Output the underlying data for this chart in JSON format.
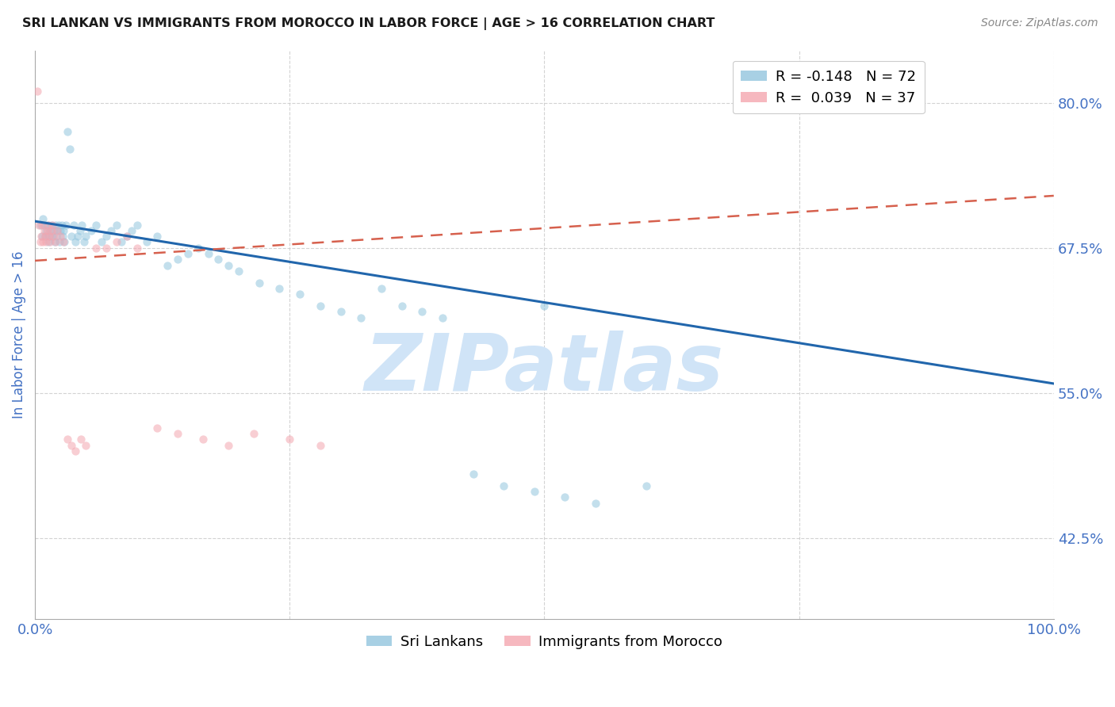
{
  "title": "SRI LANKAN VS IMMIGRANTS FROM MOROCCO IN LABOR FORCE | AGE > 16 CORRELATION CHART",
  "source": "Source: ZipAtlas.com",
  "ylabel": "In Labor Force | Age > 16",
  "yticks": [
    0.425,
    0.55,
    0.675,
    0.8
  ],
  "ytick_labels": [
    "42.5%",
    "55.0%",
    "67.5%",
    "80.0%"
  ],
  "xlim": [
    0.0,
    1.0
  ],
  "ylim": [
    0.355,
    0.845
  ],
  "sri_lankan_color": "#92c5de",
  "morocco_color": "#f4a6b0",
  "blue_line_color": "#2166ac",
  "pink_line_color": "#d6604d",
  "grid_color": "#c8c8c8",
  "title_color": "#1a1a1a",
  "axis_label_color": "#4472c4",
  "tick_label_color": "#4472c4",
  "watermark": "ZIPatlas",
  "watermark_color": "#d0e4f7",
  "scatter_alpha": 0.55,
  "scatter_size": 55,
  "blue_line_x": [
    0.0,
    1.0
  ],
  "blue_line_y": [
    0.698,
    0.558
  ],
  "pink_line_x": [
    0.0,
    1.0
  ],
  "pink_line_y": [
    0.664,
    0.72
  ],
  "sri_lankan_x": [
    0.005,
    0.007,
    0.008,
    0.009,
    0.01,
    0.011,
    0.012,
    0.013,
    0.014,
    0.015,
    0.016,
    0.017,
    0.018,
    0.019,
    0.02,
    0.021,
    0.022,
    0.023,
    0.024,
    0.025,
    0.026,
    0.027,
    0.028,
    0.029,
    0.03,
    0.032,
    0.034,
    0.036,
    0.038,
    0.04,
    0.042,
    0.044,
    0.046,
    0.048,
    0.05,
    0.055,
    0.06,
    0.065,
    0.07,
    0.075,
    0.08,
    0.085,
    0.09,
    0.095,
    0.1,
    0.11,
    0.12,
    0.13,
    0.14,
    0.15,
    0.16,
    0.17,
    0.18,
    0.19,
    0.2,
    0.22,
    0.24,
    0.26,
    0.28,
    0.3,
    0.32,
    0.34,
    0.36,
    0.38,
    0.4,
    0.43,
    0.46,
    0.49,
    0.52,
    0.55,
    0.6,
    0.5
  ],
  "sri_lankan_y": [
    0.695,
    0.685,
    0.7,
    0.695,
    0.685,
    0.69,
    0.695,
    0.68,
    0.685,
    0.69,
    0.695,
    0.685,
    0.69,
    0.68,
    0.695,
    0.685,
    0.69,
    0.695,
    0.68,
    0.69,
    0.695,
    0.685,
    0.69,
    0.68,
    0.695,
    0.775,
    0.76,
    0.685,
    0.695,
    0.68,
    0.685,
    0.69,
    0.695,
    0.68,
    0.685,
    0.69,
    0.695,
    0.68,
    0.685,
    0.69,
    0.695,
    0.68,
    0.685,
    0.69,
    0.695,
    0.68,
    0.685,
    0.66,
    0.665,
    0.67,
    0.675,
    0.67,
    0.665,
    0.66,
    0.655,
    0.645,
    0.64,
    0.635,
    0.625,
    0.62,
    0.615,
    0.64,
    0.625,
    0.62,
    0.615,
    0.48,
    0.47,
    0.465,
    0.46,
    0.455,
    0.47,
    0.625
  ],
  "morocco_x": [
    0.002,
    0.004,
    0.005,
    0.006,
    0.007,
    0.008,
    0.009,
    0.01,
    0.011,
    0.012,
    0.013,
    0.014,
    0.015,
    0.016,
    0.017,
    0.018,
    0.02,
    0.022,
    0.025,
    0.028,
    0.032,
    0.036,
    0.04,
    0.045,
    0.05,
    0.06,
    0.07,
    0.08,
    0.09,
    0.1,
    0.12,
    0.14,
    0.165,
    0.19,
    0.215,
    0.25,
    0.28
  ],
  "morocco_y": [
    0.81,
    0.695,
    0.68,
    0.685,
    0.695,
    0.68,
    0.69,
    0.685,
    0.68,
    0.69,
    0.695,
    0.685,
    0.68,
    0.69,
    0.695,
    0.685,
    0.68,
    0.69,
    0.685,
    0.68,
    0.51,
    0.505,
    0.5,
    0.51,
    0.505,
    0.675,
    0.675,
    0.68,
    0.685,
    0.675,
    0.52,
    0.515,
    0.51,
    0.505,
    0.515,
    0.51,
    0.505
  ]
}
